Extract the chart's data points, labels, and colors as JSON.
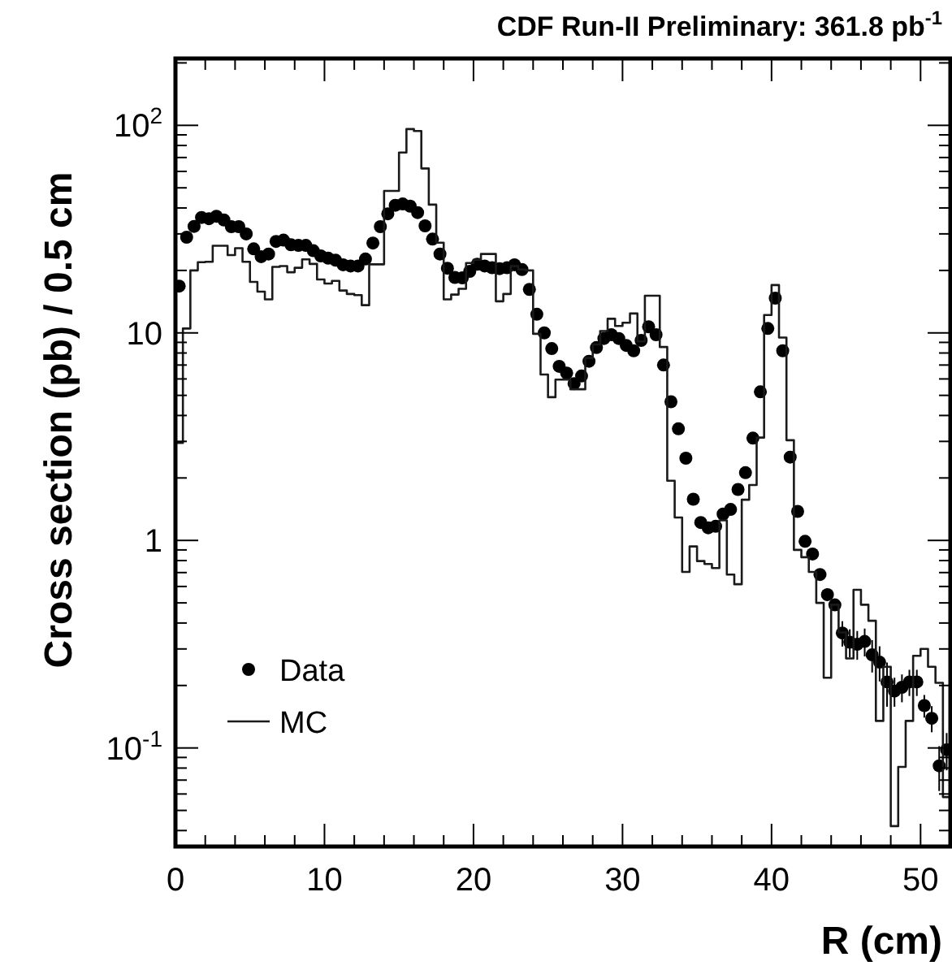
{
  "chart_data": {
    "type": "scatter",
    "title": "CDF Run-II Preliminary:  361.8 pb$^{-1}$",
    "xlabel": "R (cm)",
    "ylabel": "Cross section (pb) / 0.5 cm",
    "log": "y",
    "legend": "bottom left",
    "grid": false,
    "xlim": [
      0,
      52
    ],
    "ylim": [
      0.0335,
      210
    ],
    "xticks": [
      0,
      {
        "value": 2,
        "label": null
      },
      {
        "value": 4,
        "label": null
      },
      {
        "value": 6,
        "label": null
      },
      {
        "value": 8,
        "label": null
      },
      10,
      {
        "value": 12,
        "label": null
      },
      {
        "value": 14,
        "label": null
      },
      {
        "value": 16,
        "label": null
      },
      {
        "value": 18,
        "label": null
      },
      20,
      {
        "value": 22,
        "label": null
      },
      {
        "value": 24,
        "label": null
      },
      {
        "value": 26,
        "label": null
      },
      {
        "value": 28,
        "label": null
      },
      30,
      {
        "value": 32,
        "label": null
      },
      {
        "value": 34,
        "label": null
      },
      {
        "value": 36,
        "label": null
      },
      {
        "value": 38,
        "label": null
      },
      40,
      {
        "value": 42,
        "label": null
      },
      {
        "value": 44,
        "label": null
      },
      {
        "value": 46,
        "label": null
      },
      {
        "value": 48,
        "label": null
      },
      50
    ],
    "yticks": [
      {
        "value": 0.04,
        "label": null
      },
      {
        "value": 0.05,
        "label": null
      },
      {
        "value": 0.06,
        "label": null
      },
      {
        "value": 0.07,
        "label": null
      },
      {
        "value": 0.08,
        "label": null
      },
      {
        "value": 0.09,
        "label": null
      },
      {
        "value": 0.1,
        "label": "10$^{-1}$"
      },
      {
        "value": 0.2,
        "label": null
      },
      {
        "value": 0.3,
        "label": null
      },
      {
        "value": 0.4,
        "label": null
      },
      {
        "value": 0.5,
        "label": null
      },
      {
        "value": 0.6,
        "label": null
      },
      {
        "value": 0.7,
        "label": null
      },
      {
        "value": 0.8,
        "label": null
      },
      {
        "value": 0.9,
        "label": null
      },
      1,
      {
        "value": 2,
        "label": null
      },
      {
        "value": 3,
        "label": null
      },
      {
        "value": 4,
        "label": null
      },
      {
        "value": 5,
        "label": null
      },
      {
        "value": 6,
        "label": null
      },
      {
        "value": 7,
        "label": null
      },
      {
        "value": 8,
        "label": null
      },
      {
        "value": 9,
        "label": null
      },
      10,
      {
        "value": 20,
        "label": null
      },
      {
        "value": 30,
        "label": null
      },
      {
        "value": 40,
        "label": null
      },
      {
        "value": 50,
        "label": null
      },
      {
        "value": 60,
        "label": null
      },
      {
        "value": 70,
        "label": null
      },
      {
        "value": 80,
        "label": null
      },
      {
        "value": 90,
        "label": null
      },
      {
        "value": 100,
        "label": "10$^{2}$"
      },
      {
        "value": 200,
        "label": null
      }
    ],
    "x": [
      0.25,
      0.75,
      1.25,
      1.75,
      2.25,
      2.75,
      3.25,
      3.75,
      4.25,
      4.75,
      5.25,
      5.75,
      6.25,
      6.75,
      7.25,
      7.75,
      8.25,
      8.75,
      9.25,
      9.75,
      10.25,
      10.75,
      11.25,
      11.75,
      12.25,
      12.75,
      13.25,
      13.75,
      14.25,
      14.75,
      15.25,
      15.75,
      16.25,
      16.75,
      17.25,
      17.75,
      18.25,
      18.75,
      19.25,
      19.75,
      20.25,
      20.75,
      21.25,
      21.75,
      22.25,
      22.75,
      23.25,
      23.75,
      24.25,
      24.75,
      25.25,
      25.75,
      26.25,
      26.75,
      27.25,
      27.75,
      28.25,
      28.75,
      29.25,
      29.75,
      30.25,
      30.75,
      31.25,
      31.75,
      32.25,
      32.75,
      33.25,
      33.75,
      34.25,
      34.75,
      35.25,
      35.75,
      36.25,
      36.75,
      37.25,
      37.75,
      38.25,
      38.75,
      39.25,
      39.75,
      40.25,
      40.75,
      41.25,
      41.75,
      42.25,
      42.75,
      43.25,
      43.75,
      44.25,
      44.75,
      45.25,
      45.75,
      46.25,
      46.75,
      47.25,
      47.75,
      48.25,
      48.75,
      49.25,
      49.75,
      50.25,
      50.75,
      51.25,
      51.75
    ],
    "series": [
      {
        "name": "Data",
        "marker": "circle",
        "color": "#000000",
        "values": [
          16.8,
          28.9,
          32.6,
          36,
          35.5,
          36.5,
          35,
          32.5,
          32.5,
          30,
          25.4,
          23.3,
          24,
          27.6,
          28,
          26.6,
          26.4,
          26.4,
          24.9,
          23.5,
          22.9,
          22.4,
          21.3,
          21,
          21,
          22.7,
          27.1,
          32.5,
          37.5,
          41.2,
          41.8,
          40.8,
          38,
          32.8,
          28.3,
          24,
          20.5,
          18.5,
          18.4,
          19.8,
          21.4,
          21,
          20.6,
          20.4,
          20.6,
          21.3,
          20.2,
          16.2,
          12.3,
          10,
          8.4,
          6.9,
          6.4,
          5.7,
          6.2,
          7.3,
          8.5,
          9.4,
          9.8,
          9.4,
          8.7,
          8.2,
          9.2,
          10.7,
          9.8,
          7,
          4.66,
          3.45,
          2.49,
          1.58,
          1.22,
          1.15,
          1.17,
          1.34,
          1.41,
          1.76,
          2.12,
          3.11,
          5.2,
          10.5,
          14.7,
          8.2,
          2.52,
          1.38,
          0.99,
          0.86,
          0.685,
          0.548,
          0.489,
          0.358,
          0.323,
          0.316,
          0.326,
          0.281,
          0.259,
          0.208,
          0.188,
          0.196,
          0.208,
          0.208,
          0.16,
          0.139,
          0.082,
          0.098
        ],
        "errors": [
          null,
          null,
          null,
          null,
          null,
          null,
          null,
          null,
          null,
          null,
          null,
          null,
          null,
          null,
          null,
          null,
          null,
          null,
          null,
          null,
          null,
          null,
          null,
          null,
          null,
          null,
          null,
          null,
          null,
          null,
          null,
          null,
          null,
          null,
          null,
          null,
          null,
          null,
          null,
          null,
          null,
          null,
          null,
          null,
          null,
          null,
          null,
          null,
          null,
          null,
          null,
          null,
          null,
          null,
          null,
          null,
          null,
          null,
          null,
          null,
          null,
          null,
          null,
          null,
          null,
          null,
          null,
          null,
          null,
          null,
          null,
          null,
          null,
          null,
          null,
          null,
          null,
          null,
          null,
          null,
          null,
          null,
          null,
          null,
          null,
          null,
          null,
          null,
          null,
          0.05,
          0.05,
          0.05,
          0.05,
          0.05,
          0.05,
          0.05,
          0.03,
          0.03,
          0.03,
          0.03,
          0.02,
          0.02,
          0.02,
          0.02
        ]
      },
      {
        "name": "MC",
        "type": "step",
        "color": "#1a1a1a",
        "values": [
          2.95,
          10.5,
          20,
          21.9,
          22,
          26.3,
          26.3,
          23.7,
          25.6,
          22,
          17.6,
          15.8,
          14.5,
          20.8,
          21,
          19.6,
          20.6,
          22.6,
          21.5,
          18.1,
          17.3,
          17.8,
          16,
          15.4,
          15.2,
          13.6,
          21.4,
          21.4,
          48.3,
          48.3,
          74,
          96,
          94,
          62,
          41.5,
          27.2,
          14.5,
          15.3,
          16.3,
          21.7,
          22.5,
          24,
          24,
          14.2,
          15.4,
          21,
          20.2,
          20,
          9.9,
          6.3,
          4.9,
          5.96,
          5.96,
          5.35,
          5.35,
          7.57,
          8.8,
          10.2,
          11.7,
          10.8,
          11.2,
          12.4,
          9.1,
          15.1,
          15.1,
          8.55,
          1.94,
          1.29,
          0.705,
          0.935,
          0.795,
          0.77,
          0.736,
          1.25,
          0.685,
          0.615,
          1.57,
          1.85,
          3.13,
          12.2,
          17,
          9.5,
          3.04,
          0.9,
          0.83,
          0.705,
          0.5,
          0.218,
          0.49,
          0.36,
          0.27,
          0.578,
          0.49,
          0.41,
          0.135,
          0.246,
          0.042,
          0.081,
          0.135,
          0.278,
          0.3,
          0.246,
          0.206,
          0.058
        ]
      }
    ]
  }
}
